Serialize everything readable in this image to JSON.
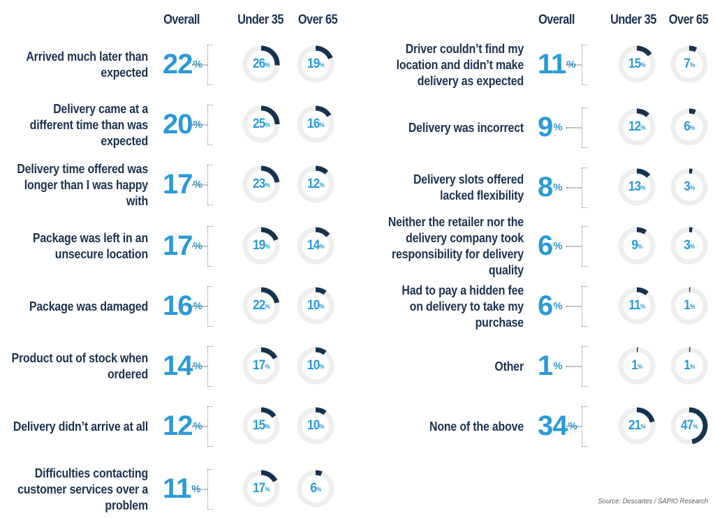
{
  "headers": {
    "overall": "Overall",
    "under35": "Under 35",
    "over65": "Over 65"
  },
  "percent_sign": "%",
  "source": "Source: Descartes / SAPIO Research",
  "colors": {
    "heading_navy": "#1b3350",
    "value_blue": "#2a9ad8",
    "ring_track": "#eeeeee",
    "ring_fill": "#16324f"
  },
  "chart_data": {
    "type": "table",
    "columns": [
      "Overall",
      "Under 35",
      "Over 65"
    ],
    "unit": "%",
    "rows": [
      {
        "label": "Arrived much later than expected",
        "overall": 22,
        "under35": 26,
        "over65": 19
      },
      {
        "label": "Delivery came at a different time than was expected",
        "overall": 20,
        "under35": 25,
        "over65": 16
      },
      {
        "label": "Delivery time offered was longer than I was happy with",
        "overall": 17,
        "under35": 23,
        "over65": 12
      },
      {
        "label": "Package was left in an unsecure location",
        "overall": 17,
        "under35": 19,
        "over65": 14
      },
      {
        "label": "Package was damaged",
        "overall": 16,
        "under35": 22,
        "over65": 10
      },
      {
        "label": "Product out of stock when ordered",
        "overall": 14,
        "under35": 17,
        "over65": 10
      },
      {
        "label": "Delivery didn’t arrive at all",
        "overall": 12,
        "under35": 15,
        "over65": 10
      },
      {
        "label": "Difficulties contacting customer services over a problem",
        "overall": 11,
        "under35": 17,
        "over65": 6
      },
      {
        "label": "Driver couldn’t find my location and didn’t make delivery as expected",
        "overall": 11,
        "under35": 15,
        "over65": 7
      },
      {
        "label": "Delivery was incorrect",
        "overall": 9,
        "under35": 12,
        "over65": 6
      },
      {
        "label": "Delivery slots offered lacked flexibility",
        "overall": 8,
        "under35": 13,
        "over65": 3
      },
      {
        "label": "Neither the retailer nor the delivery company took responsibility for delivery quality",
        "overall": 6,
        "under35": 9,
        "over65": 3
      },
      {
        "label": "Had to pay a hidden fee on delivery to take my purchase",
        "overall": 6,
        "under35": 11,
        "over65": 1
      },
      {
        "label": "Other",
        "overall": 1,
        "under35": 1,
        "over65": 1
      },
      {
        "label": "None of the above",
        "overall": 34,
        "under35": 21,
        "over65": 47
      }
    ]
  }
}
